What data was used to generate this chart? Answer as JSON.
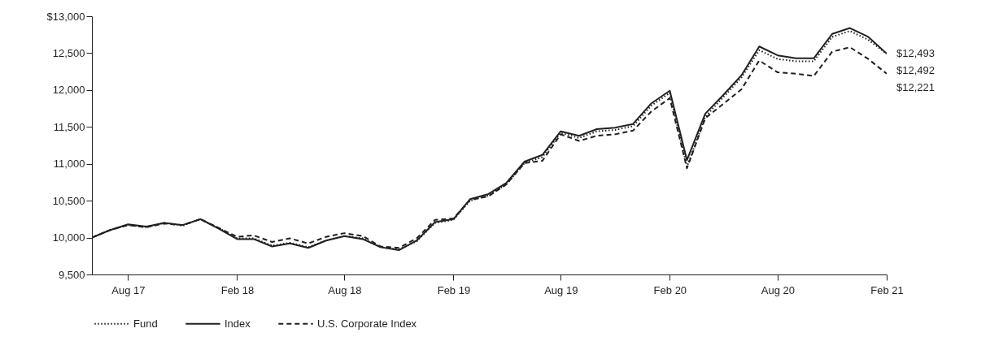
{
  "chart_data": {
    "type": "line",
    "x": [
      "2017-06",
      "2017-07",
      "2017-08",
      "2017-09",
      "2017-10",
      "2017-11",
      "2017-12",
      "2018-01",
      "2018-02",
      "2018-03",
      "2018-04",
      "2018-05",
      "2018-06",
      "2018-07",
      "2018-08",
      "2018-09",
      "2018-10",
      "2018-11",
      "2018-12",
      "2019-01",
      "2019-02",
      "2019-03",
      "2019-04",
      "2019-05",
      "2019-06",
      "2019-07",
      "2019-08",
      "2019-09",
      "2019-10",
      "2019-11",
      "2019-12",
      "2020-01",
      "2020-02",
      "2020-03",
      "2020-04",
      "2020-05",
      "2020-06",
      "2020-07",
      "2020-08",
      "2020-09",
      "2020-10",
      "2020-11",
      "2020-12",
      "2021-01",
      "2021-02"
    ],
    "series": [
      {
        "name": "Fund",
        "color": "#231f20",
        "line_style": "dotted",
        "values": [
          10000,
          10100,
          10170,
          10140,
          10200,
          10160,
          10250,
          10130,
          9990,
          9990,
          9890,
          9930,
          9870,
          9960,
          10020,
          9990,
          9870,
          9840,
          9950,
          10200,
          10240,
          10500,
          10570,
          10720,
          11010,
          11090,
          11420,
          11350,
          11440,
          11460,
          11510,
          11790,
          11960,
          10960,
          11640,
          11900,
          12170,
          12540,
          12420,
          12390,
          12390,
          12720,
          12800,
          12680,
          12492
        ]
      },
      {
        "name": "Index",
        "color": "#231f20",
        "line_style": "solid",
        "values": [
          10000,
          10100,
          10180,
          10150,
          10200,
          10170,
          10250,
          10120,
          9980,
          9980,
          9880,
          9920,
          9860,
          9960,
          10020,
          9980,
          9870,
          9830,
          9960,
          10210,
          10250,
          10520,
          10590,
          10740,
          11030,
          11120,
          11440,
          11380,
          11470,
          11490,
          11540,
          11820,
          11990,
          11050,
          11680,
          11930,
          12200,
          12590,
          12470,
          12430,
          12430,
          12760,
          12840,
          12720,
          12493
        ]
      },
      {
        "name": "U.S. Corporate Index",
        "color": "#231f20",
        "line_style": "dashed",
        "values": [
          10000,
          10100,
          10170,
          10140,
          10190,
          10170,
          10250,
          10130,
          10010,
          10030,
          9940,
          9990,
          9920,
          10010,
          10060,
          10020,
          9880,
          9860,
          9990,
          10240,
          10260,
          10510,
          10560,
          10720,
          11010,
          11040,
          11400,
          11310,
          11380,
          11400,
          11450,
          11710,
          11890,
          10940,
          11620,
          11810,
          12010,
          12400,
          12240,
          12220,
          12190,
          12520,
          12580,
          12420,
          12221
        ]
      }
    ],
    "xlim": [
      "2017-06",
      "2021-02"
    ],
    "xticks": [
      {
        "value": "2017-08",
        "label": "Aug 17"
      },
      {
        "value": "2018-02",
        "label": "Feb 18"
      },
      {
        "value": "2018-08",
        "label": "Aug 18"
      },
      {
        "value": "2019-02",
        "label": "Feb 19"
      },
      {
        "value": "2019-08",
        "label": "Aug 19"
      },
      {
        "value": "2020-02",
        "label": "Feb 20"
      },
      {
        "value": "2020-08",
        "label": "Aug 20"
      },
      {
        "value": "2021-02",
        "label": "Feb 21"
      }
    ],
    "ylim": [
      9500,
      13000
    ],
    "yticks": [
      {
        "value": 9500,
        "label": "9,500"
      },
      {
        "value": 10000,
        "label": "10,000"
      },
      {
        "value": 10500,
        "label": "10,500"
      },
      {
        "value": 11000,
        "label": "11,000"
      },
      {
        "value": 11500,
        "label": "11,500"
      },
      {
        "value": 12000,
        "label": "12,000"
      },
      {
        "value": 12500,
        "label": "12,500"
      },
      {
        "value": 13000,
        "label": "$13,000"
      }
    ],
    "annotations": [
      {
        "text": "$12,493",
        "x": "2021-02",
        "y": 12493
      },
      {
        "text": "$12,492",
        "x": "2021-02",
        "y": 12492
      },
      {
        "text": "$12,221",
        "x": "2021-02",
        "y": 12221
      }
    ],
    "legend": "bottom",
    "grid": false
  }
}
